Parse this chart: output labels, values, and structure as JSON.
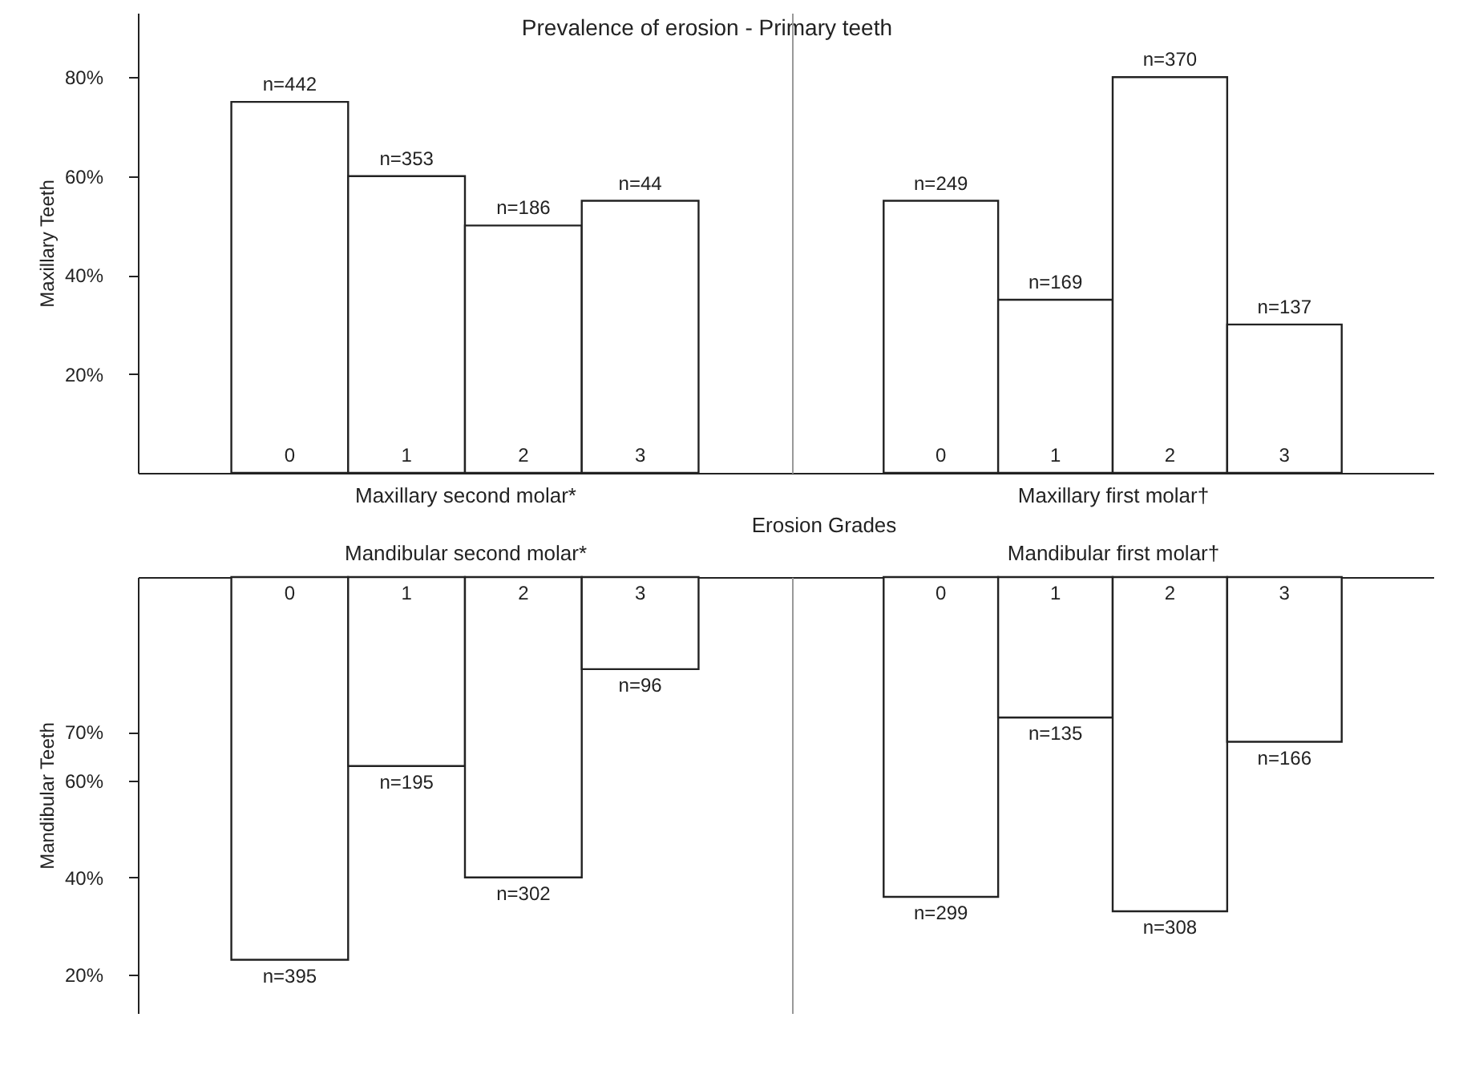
{
  "chart_data": [
    {
      "type": "bar",
      "title": "Prevalence of erosion - Primary teeth",
      "xlabel": "Maxillary second molar*",
      "ylabel": "Maxillary Teeth",
      "categories": [
        "0",
        "1",
        "2",
        "3"
      ],
      "values": [
        75,
        60,
        50,
        55
      ],
      "color": "#ffffff",
      "ylim": [
        0,
        93
      ],
      "yticks": [
        {
          "value": 20,
          "label": "20%"
        },
        {
          "value": 40,
          "label": "40%"
        },
        {
          "value": 60,
          "label": "60%"
        },
        {
          "value": 80,
          "label": "80%"
        }
      ],
      "annotations": [
        "Erosion Grades",
        {
          "text": "n=442",
          "x": "0",
          "y": 75
        },
        {
          "text": "n=353",
          "x": "1",
          "y": 60
        },
        {
          "text": "n=186",
          "x": "2",
          "y": 50
        },
        {
          "text": "n=44",
          "x": "3",
          "y": 55
        }
      ]
    },
    {
      "type": "bar",
      "xlabel": "Maxillary first molar†",
      "categories": [
        "0",
        "1",
        "2",
        "3"
      ],
      "values": [
        55,
        35,
        80,
        30
      ],
      "color": "#ffffff",
      "ylim": [
        0,
        93
      ],
      "tick_labels": "x",
      "annotations": [
        {
          "text": "n=249",
          "x": "0",
          "y": 55
        },
        {
          "text": "n=169",
          "x": "1",
          "y": 35
        },
        {
          "text": "n=370",
          "x": "2",
          "y": 80
        },
        {
          "text": "n=137",
          "x": "3",
          "y": 30
        }
      ]
    },
    {
      "type": "bar",
      "xlabel": "Mandibular second molar*",
      "ylabel": "Mandibular Teeth",
      "categories": [
        "0",
        "1",
        "2",
        "3"
      ],
      "base": [
        102,
        102,
        102,
        102
      ],
      "values": [
        -79,
        -39,
        -62,
        -19
      ],
      "color": "#ffffff",
      "ylim": [
        12,
        102
      ],
      "yticks": [
        {
          "value": 20,
          "label": "20%"
        },
        {
          "value": 40,
          "label": "40%"
        },
        {
          "value": 60,
          "label": "60%"
        },
        {
          "value": 70,
          "label": "70%"
        }
      ],
      "annotations": [
        {
          "text": "n=395",
          "x": "0",
          "y": 23
        },
        {
          "text": "n=195",
          "x": "1",
          "y": 63
        },
        {
          "text": "n=302",
          "x": "2",
          "y": 40
        },
        {
          "text": "n=96",
          "x": "3",
          "y": 83
        }
      ]
    },
    {
      "type": "bar",
      "xlabel": "Mandibular first molar†",
      "categories": [
        "0",
        "1",
        "2",
        "3"
      ],
      "base": [
        102,
        102,
        102,
        102
      ],
      "values": [
        -66,
        -29,
        -69,
        -34
      ],
      "color": "#ffffff",
      "ylim": [
        12,
        102
      ],
      "tick_labels": "x",
      "annotations": [
        {
          "text": "n=299",
          "x": "0",
          "y": 36
        },
        {
          "text": "n=135",
          "x": "1",
          "y": 73
        },
        {
          "text": "n=308",
          "x": "2",
          "y": 33
        },
        {
          "text": "n=166",
          "x": "3",
          "y": 68
        }
      ]
    }
  ]
}
